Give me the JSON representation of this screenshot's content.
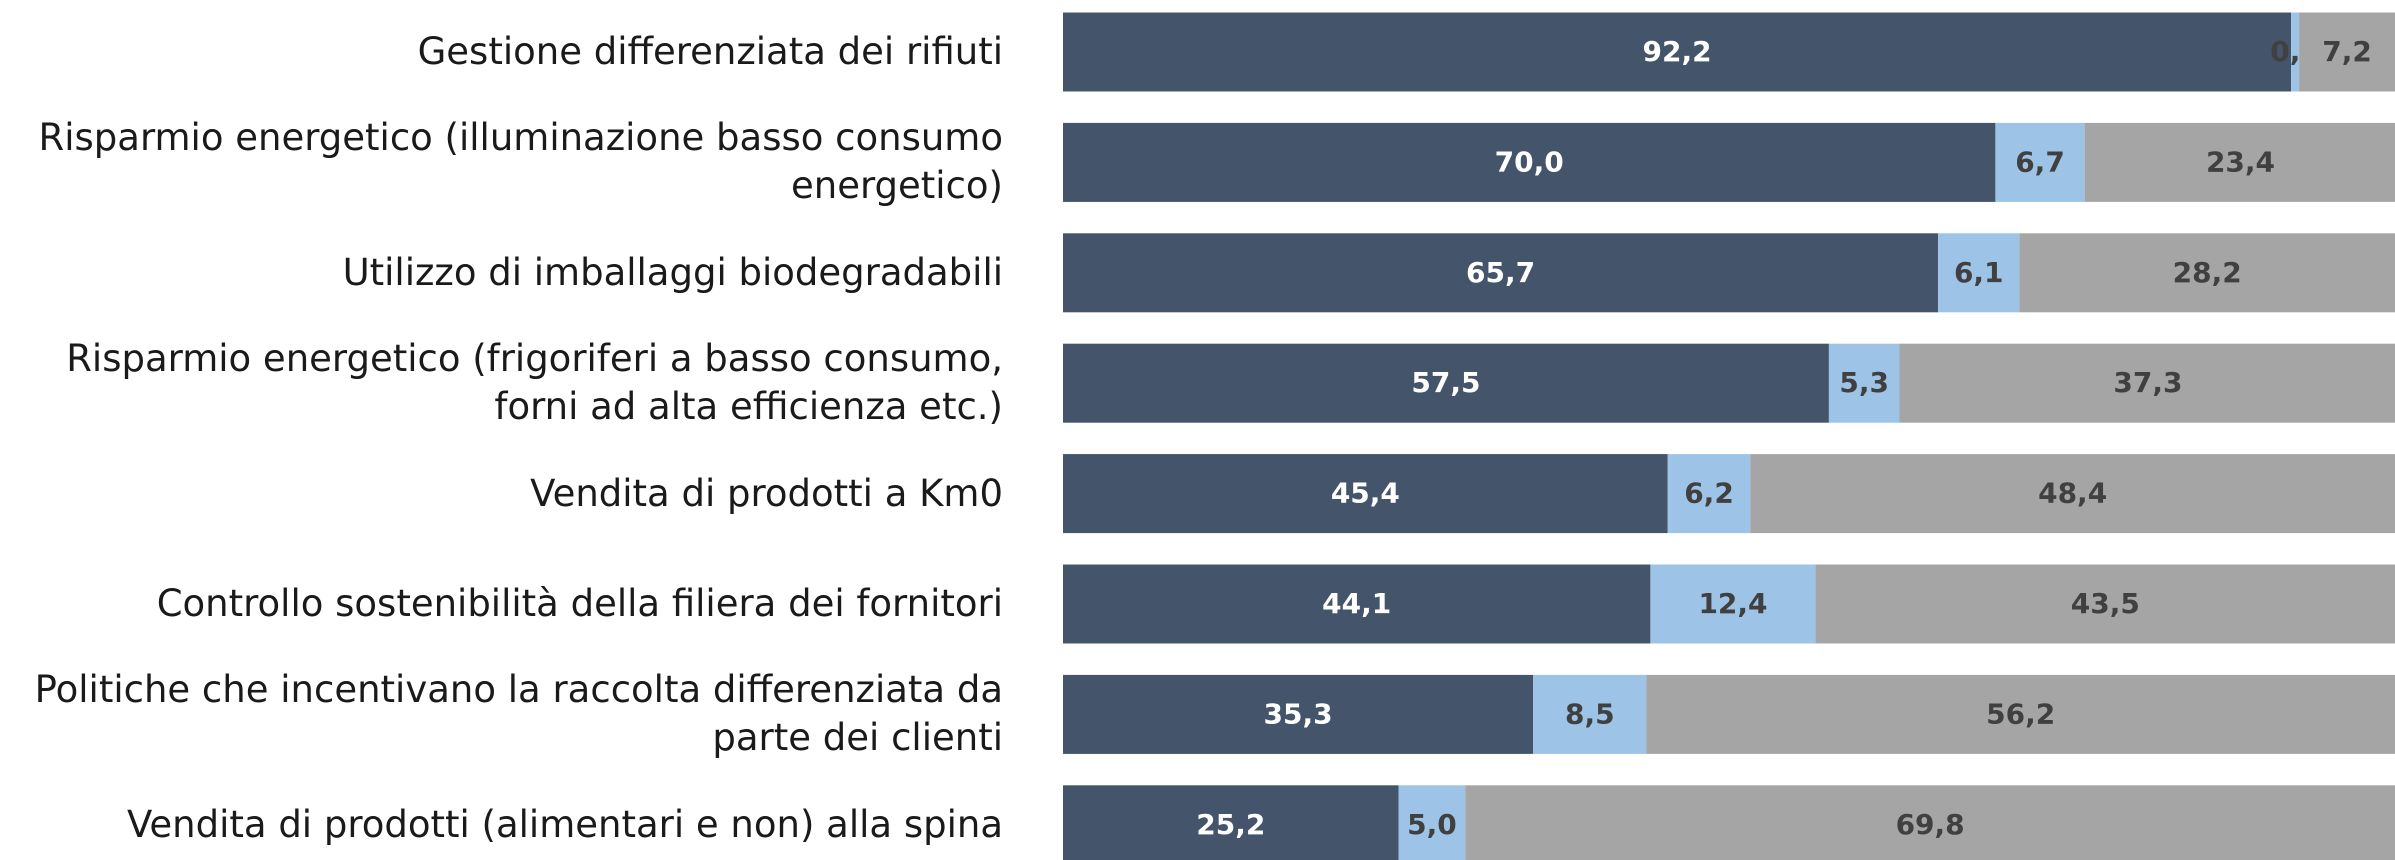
{
  "chart_data": {
    "type": "stacked-bar-horizontal",
    "categories": [
      "Gestione differenziata dei rifiuti",
      "Risparmio energetico (illuminazione basso consumo energetico)",
      "Utilizzo di imballaggi biodegradabili",
      "Risparmio energetico (frigoriferi a basso consumo, forni ad alta efficienza etc.)",
      "Vendita di prodotti a Km0",
      "Controllo sostenibilità della filiera dei fornitori",
      "Politiche che incentivano la raccolta differenziata da parte dei clienti",
      "Vendita di prodotti (alimentari e non) alla spina"
    ],
    "series": [
      {
        "color": "#44546a",
        "label_color": "#ffffff",
        "values": [
          92.2,
          70.0,
          65.7,
          57.5,
          45.4,
          44.1,
          35.3,
          25.2
        ],
        "value_labels": [
          "92,2",
          "70,0",
          "65,7",
          "57,5",
          "45,4",
          "44,1",
          "35,3",
          "25,2"
        ]
      },
      {
        "color": "#9dc3e6",
        "label_color": "#404040",
        "values": [
          0.6,
          6.7,
          6.1,
          5.3,
          6.2,
          12.4,
          8.5,
          5.0
        ],
        "value_labels": [
          "0,6",
          "6,7",
          "6,1",
          "5,3",
          "6,2",
          "12,4",
          "8,5",
          "5,0"
        ]
      },
      {
        "color": "#a5a5a5",
        "label_color": "#404040",
        "values": [
          7.2,
          23.4,
          28.2,
          37.3,
          48.4,
          43.5,
          56.2,
          69.8
        ],
        "value_labels": [
          "7,2",
          "23,4",
          "28,2",
          "37,3",
          "48,4",
          "43,5",
          "56,2",
          "69,8"
        ]
      }
    ],
    "xlim": [
      0,
      100
    ]
  }
}
